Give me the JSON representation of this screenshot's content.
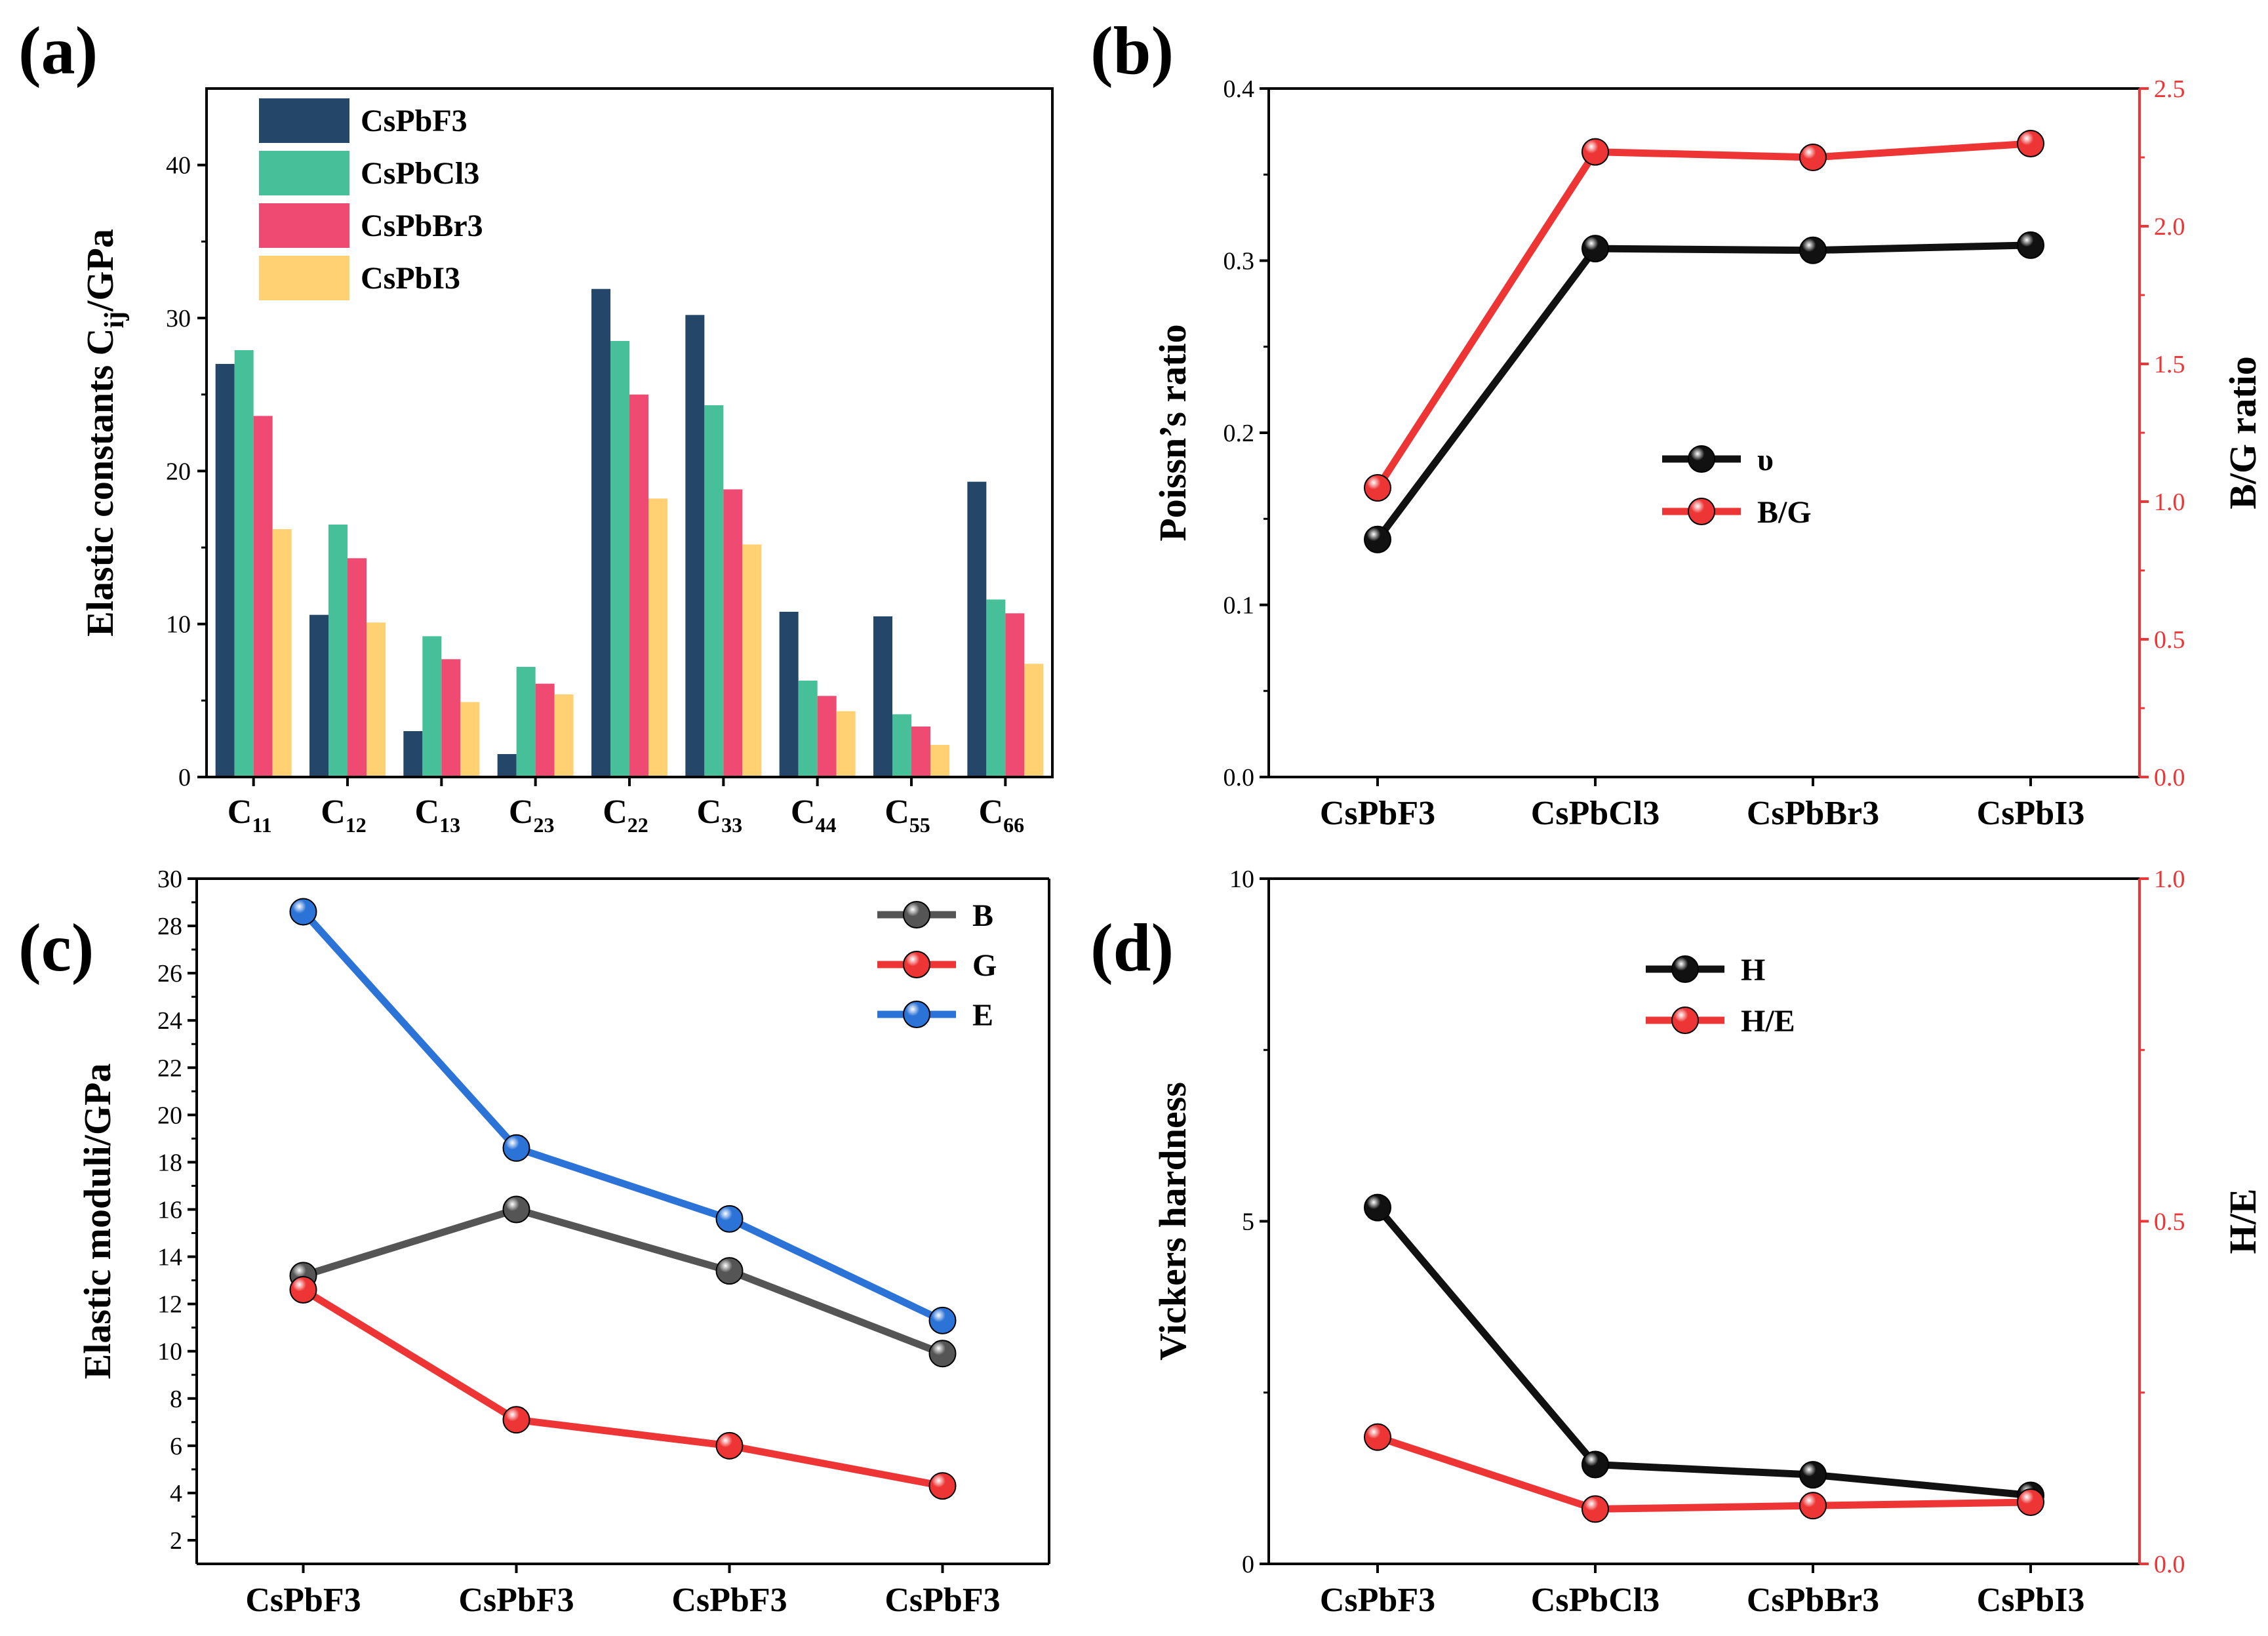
{
  "figure": {
    "background": "#ffffff"
  },
  "colors": {
    "navy": "#244769",
    "teal": "#47BF98",
    "pink": "#EE4A72",
    "yellow": "#FFD173",
    "black": "#111111",
    "red": "#EE3536",
    "gray": "#555555",
    "blue": "#2C73D8"
  },
  "chart_data": [
    {
      "id": "a",
      "type": "bar",
      "panel_label": "(a)",
      "ylabel": "Elastic constants C",
      "ylabel_sub": "ij",
      "ylabel_suffix": "/GPa",
      "ylim": [
        0,
        45
      ],
      "yticks": [
        0,
        10,
        20,
        30,
        40
      ],
      "categories": [
        {
          "base": "C",
          "sub": "11"
        },
        {
          "base": "C",
          "sub": "12"
        },
        {
          "base": "C",
          "sub": "13"
        },
        {
          "base": "C",
          "sub": "23"
        },
        {
          "base": "C",
          "sub": "22"
        },
        {
          "base": "C",
          "sub": "33"
        },
        {
          "base": "C",
          "sub": "44"
        },
        {
          "base": "C",
          "sub": "55"
        },
        {
          "base": "C",
          "sub": "66"
        }
      ],
      "series": [
        {
          "name": "CsPbF3",
          "color": "#244769",
          "values": [
            27.0,
            10.6,
            3.0,
            1.5,
            31.9,
            30.2,
            10.8,
            10.5,
            19.3
          ]
        },
        {
          "name": "CsPbCl3",
          "color": "#47BF98",
          "values": [
            27.9,
            16.5,
            9.2,
            7.2,
            28.5,
            24.3,
            6.3,
            4.1,
            11.6
          ]
        },
        {
          "name": "CsPbBr3",
          "color": "#EE4A72",
          "values": [
            23.6,
            14.3,
            7.7,
            6.1,
            25.0,
            18.8,
            5.3,
            3.3,
            10.7
          ]
        },
        {
          "name": "CsPbI3",
          "color": "#FFD173",
          "values": [
            16.2,
            10.1,
            4.9,
            5.4,
            18.2,
            15.2,
            4.3,
            2.1,
            7.4
          ]
        }
      ],
      "legend_position": "top-left"
    },
    {
      "id": "b",
      "type": "line",
      "panel_label": "(b)",
      "ylabel": "Poissn’s ratio",
      "y2label": "B/G ratio",
      "categories": [
        "CsPbF3",
        "CsPbCl3",
        "CsPbBr3",
        "CsPbI3"
      ],
      "ylim": [
        0,
        0.4
      ],
      "yticks": [
        "0.0",
        "0.1",
        "0.2",
        "0.3",
        "0.4"
      ],
      "y2lim": [
        0,
        2.5
      ],
      "y2ticks": [
        "0.0",
        "0.5",
        "1.0",
        "1.5",
        "2.0",
        "2.5"
      ],
      "series": [
        {
          "name": "υ",
          "axis": "left",
          "color": "#111111",
          "values": [
            0.138,
            0.307,
            0.306,
            0.309
          ]
        },
        {
          "name": "B/G",
          "axis": "right",
          "color": "#EE3536",
          "values": [
            1.05,
            2.27,
            2.25,
            2.3
          ]
        }
      ],
      "legend_position": "center"
    },
    {
      "id": "c",
      "type": "line",
      "panel_label": "(c)",
      "ylabel": "Elastic moduli/GPa",
      "categories": [
        "CsPbF3",
        "CsPbF3",
        "CsPbF3",
        "CsPbF3"
      ],
      "ylim": [
        1,
        30
      ],
      "yticks": [
        2,
        4,
        6,
        8,
        10,
        12,
        14,
        16,
        18,
        20,
        22,
        24,
        26,
        28,
        30
      ],
      "series": [
        {
          "name": "B",
          "color": "#555555",
          "values": [
            13.2,
            16.0,
            13.4,
            9.9
          ]
        },
        {
          "name": "G",
          "color": "#EE3536",
          "values": [
            12.6,
            7.1,
            6.0,
            4.3
          ]
        },
        {
          "name": "E",
          "color": "#2C73D8",
          "values": [
            28.6,
            18.6,
            15.6,
            11.3
          ]
        }
      ],
      "legend_position": "top-right"
    },
    {
      "id": "d",
      "type": "line",
      "panel_label": "(d)",
      "ylabel": "Vickers hardness",
      "y2label": "H/E",
      "categories": [
        "CsPbF3",
        "CsPbCl3",
        "CsPbBr3",
        "CsPbI3"
      ],
      "ylim": [
        0,
        10
      ],
      "yticks": [
        "0",
        "5",
        "10"
      ],
      "y2lim": [
        0,
        1.0
      ],
      "y2ticks": [
        "0.0",
        "0.5",
        "1.0"
      ],
      "series": [
        {
          "name": "H",
          "axis": "left",
          "color": "#111111",
          "values": [
            5.2,
            1.45,
            1.3,
            1.0
          ]
        },
        {
          "name": "H/E",
          "axis": "right",
          "color": "#EE3536",
          "values": [
            0.185,
            0.08,
            0.085,
            0.09
          ]
        }
      ],
      "legend_position": "top-center"
    }
  ]
}
